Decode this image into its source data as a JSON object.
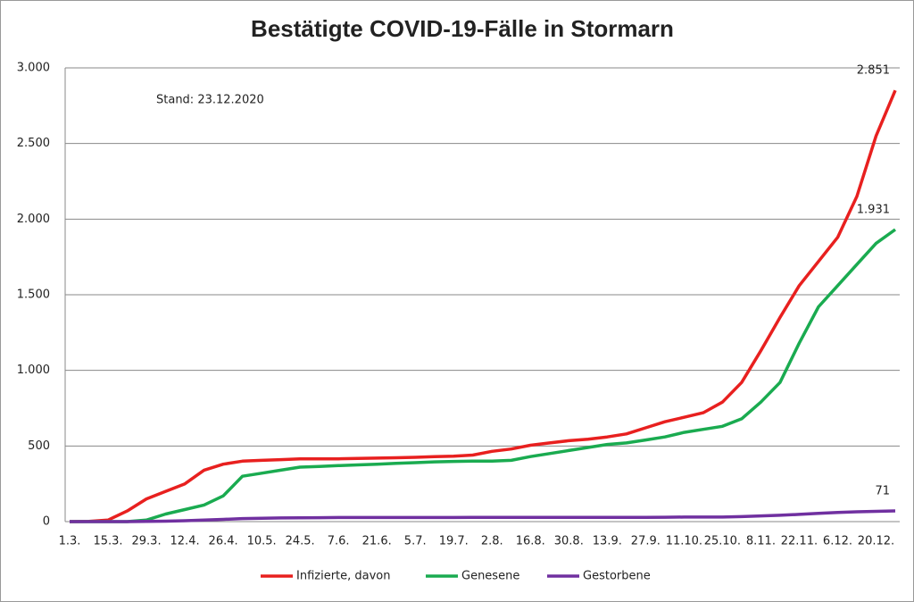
{
  "chart_data": {
    "type": "line",
    "title": "Bestätigte COVID-19-Fälle in Stormarn",
    "annotation": "Stand: 23.12.2020",
    "categories": [
      "1.3.",
      null,
      "15.3.",
      null,
      "29.3.",
      null,
      "12.4.",
      null,
      "26.4.",
      null,
      "10.5.",
      null,
      "24.5.",
      null,
      "7.6.",
      null,
      "21.6.",
      null,
      "5.7.",
      null,
      "19.7.",
      null,
      "2.8.",
      null,
      "16.8.",
      null,
      "30.8.",
      null,
      "13.9.",
      null,
      "27.9.",
      null,
      "11.10.",
      null,
      "25.10.",
      null,
      "8.11.",
      null,
      "22.11.",
      null,
      "6.12.",
      null,
      "20.12.",
      null
    ],
    "series": [
      {
        "name": "Infizierte, davon",
        "color": "#e8201f",
        "values": [
          0,
          2,
          10,
          70,
          150,
          200,
          250,
          340,
          380,
          400,
          405,
          410,
          415,
          415,
          415,
          418,
          420,
          422,
          425,
          430,
          432,
          440,
          465,
          480,
          505,
          520,
          535,
          545,
          560,
          580,
          620,
          660,
          690,
          720,
          790,
          920,
          1130,
          1350,
          1560,
          1720,
          1880,
          2150,
          2550,
          2851
        ],
        "value_labels": [
          null,
          null,
          null,
          null,
          null,
          null,
          null,
          null,
          null,
          null,
          null,
          null,
          null,
          null,
          null,
          null,
          null,
          null,
          null,
          null,
          null,
          null,
          null,
          null,
          null,
          null,
          null,
          null,
          null,
          null,
          null,
          null,
          null,
          null,
          null,
          null,
          null,
          null,
          null,
          null,
          null,
          null,
          null,
          "2.851"
        ]
      },
      {
        "name": "Genesene",
        "color": "#1aab50",
        "values": [
          0,
          0,
          0,
          0,
          10,
          50,
          80,
          110,
          170,
          300,
          320,
          340,
          360,
          365,
          370,
          375,
          380,
          385,
          390,
          395,
          398,
          400,
          400,
          405,
          430,
          450,
          470,
          490,
          510,
          520,
          540,
          560,
          590,
          610,
          630,
          680,
          790,
          920,
          1180,
          1420,
          1560,
          1700,
          1840,
          1931
        ],
        "value_labels": [
          null,
          null,
          null,
          null,
          null,
          null,
          null,
          null,
          null,
          null,
          null,
          null,
          null,
          null,
          null,
          null,
          null,
          null,
          null,
          null,
          null,
          null,
          null,
          null,
          null,
          null,
          null,
          null,
          null,
          null,
          null,
          null,
          null,
          null,
          null,
          null,
          null,
          null,
          null,
          null,
          null,
          null,
          null,
          "1.931"
        ]
      },
      {
        "name": "Gestorbene",
        "color": "#7030a0",
        "values": [
          0,
          0,
          0,
          0,
          1,
          3,
          6,
          10,
          15,
          20,
          22,
          24,
          25,
          26,
          27,
          27,
          27,
          27,
          27,
          27,
          27,
          28,
          28,
          28,
          28,
          28,
          28,
          28,
          28,
          28,
          28,
          29,
          30,
          30,
          30,
          33,
          38,
          42,
          48,
          55,
          60,
          65,
          68,
          71
        ],
        "value_labels": [
          null,
          null,
          null,
          null,
          null,
          null,
          null,
          null,
          null,
          null,
          null,
          null,
          null,
          null,
          null,
          null,
          null,
          null,
          null,
          null,
          null,
          null,
          null,
          null,
          null,
          null,
          null,
          null,
          null,
          null,
          null,
          null,
          null,
          null,
          null,
          null,
          null,
          null,
          null,
          null,
          null,
          null,
          null,
          "71"
        ]
      }
    ],
    "ylim": [
      0,
      3000
    ],
    "yticks": [
      0,
      {
        "value": 500,
        "label": "500"
      },
      {
        "value": 1000,
        "label": "1.000"
      },
      {
        "value": 1500,
        "label": "1.500"
      },
      {
        "value": 2000,
        "label": "2.000"
      },
      {
        "value": 2500,
        "label": "2.500"
      },
      {
        "value": 3000,
        "label": "3.000"
      }
    ],
    "grid": true,
    "legend": "bottom"
  }
}
